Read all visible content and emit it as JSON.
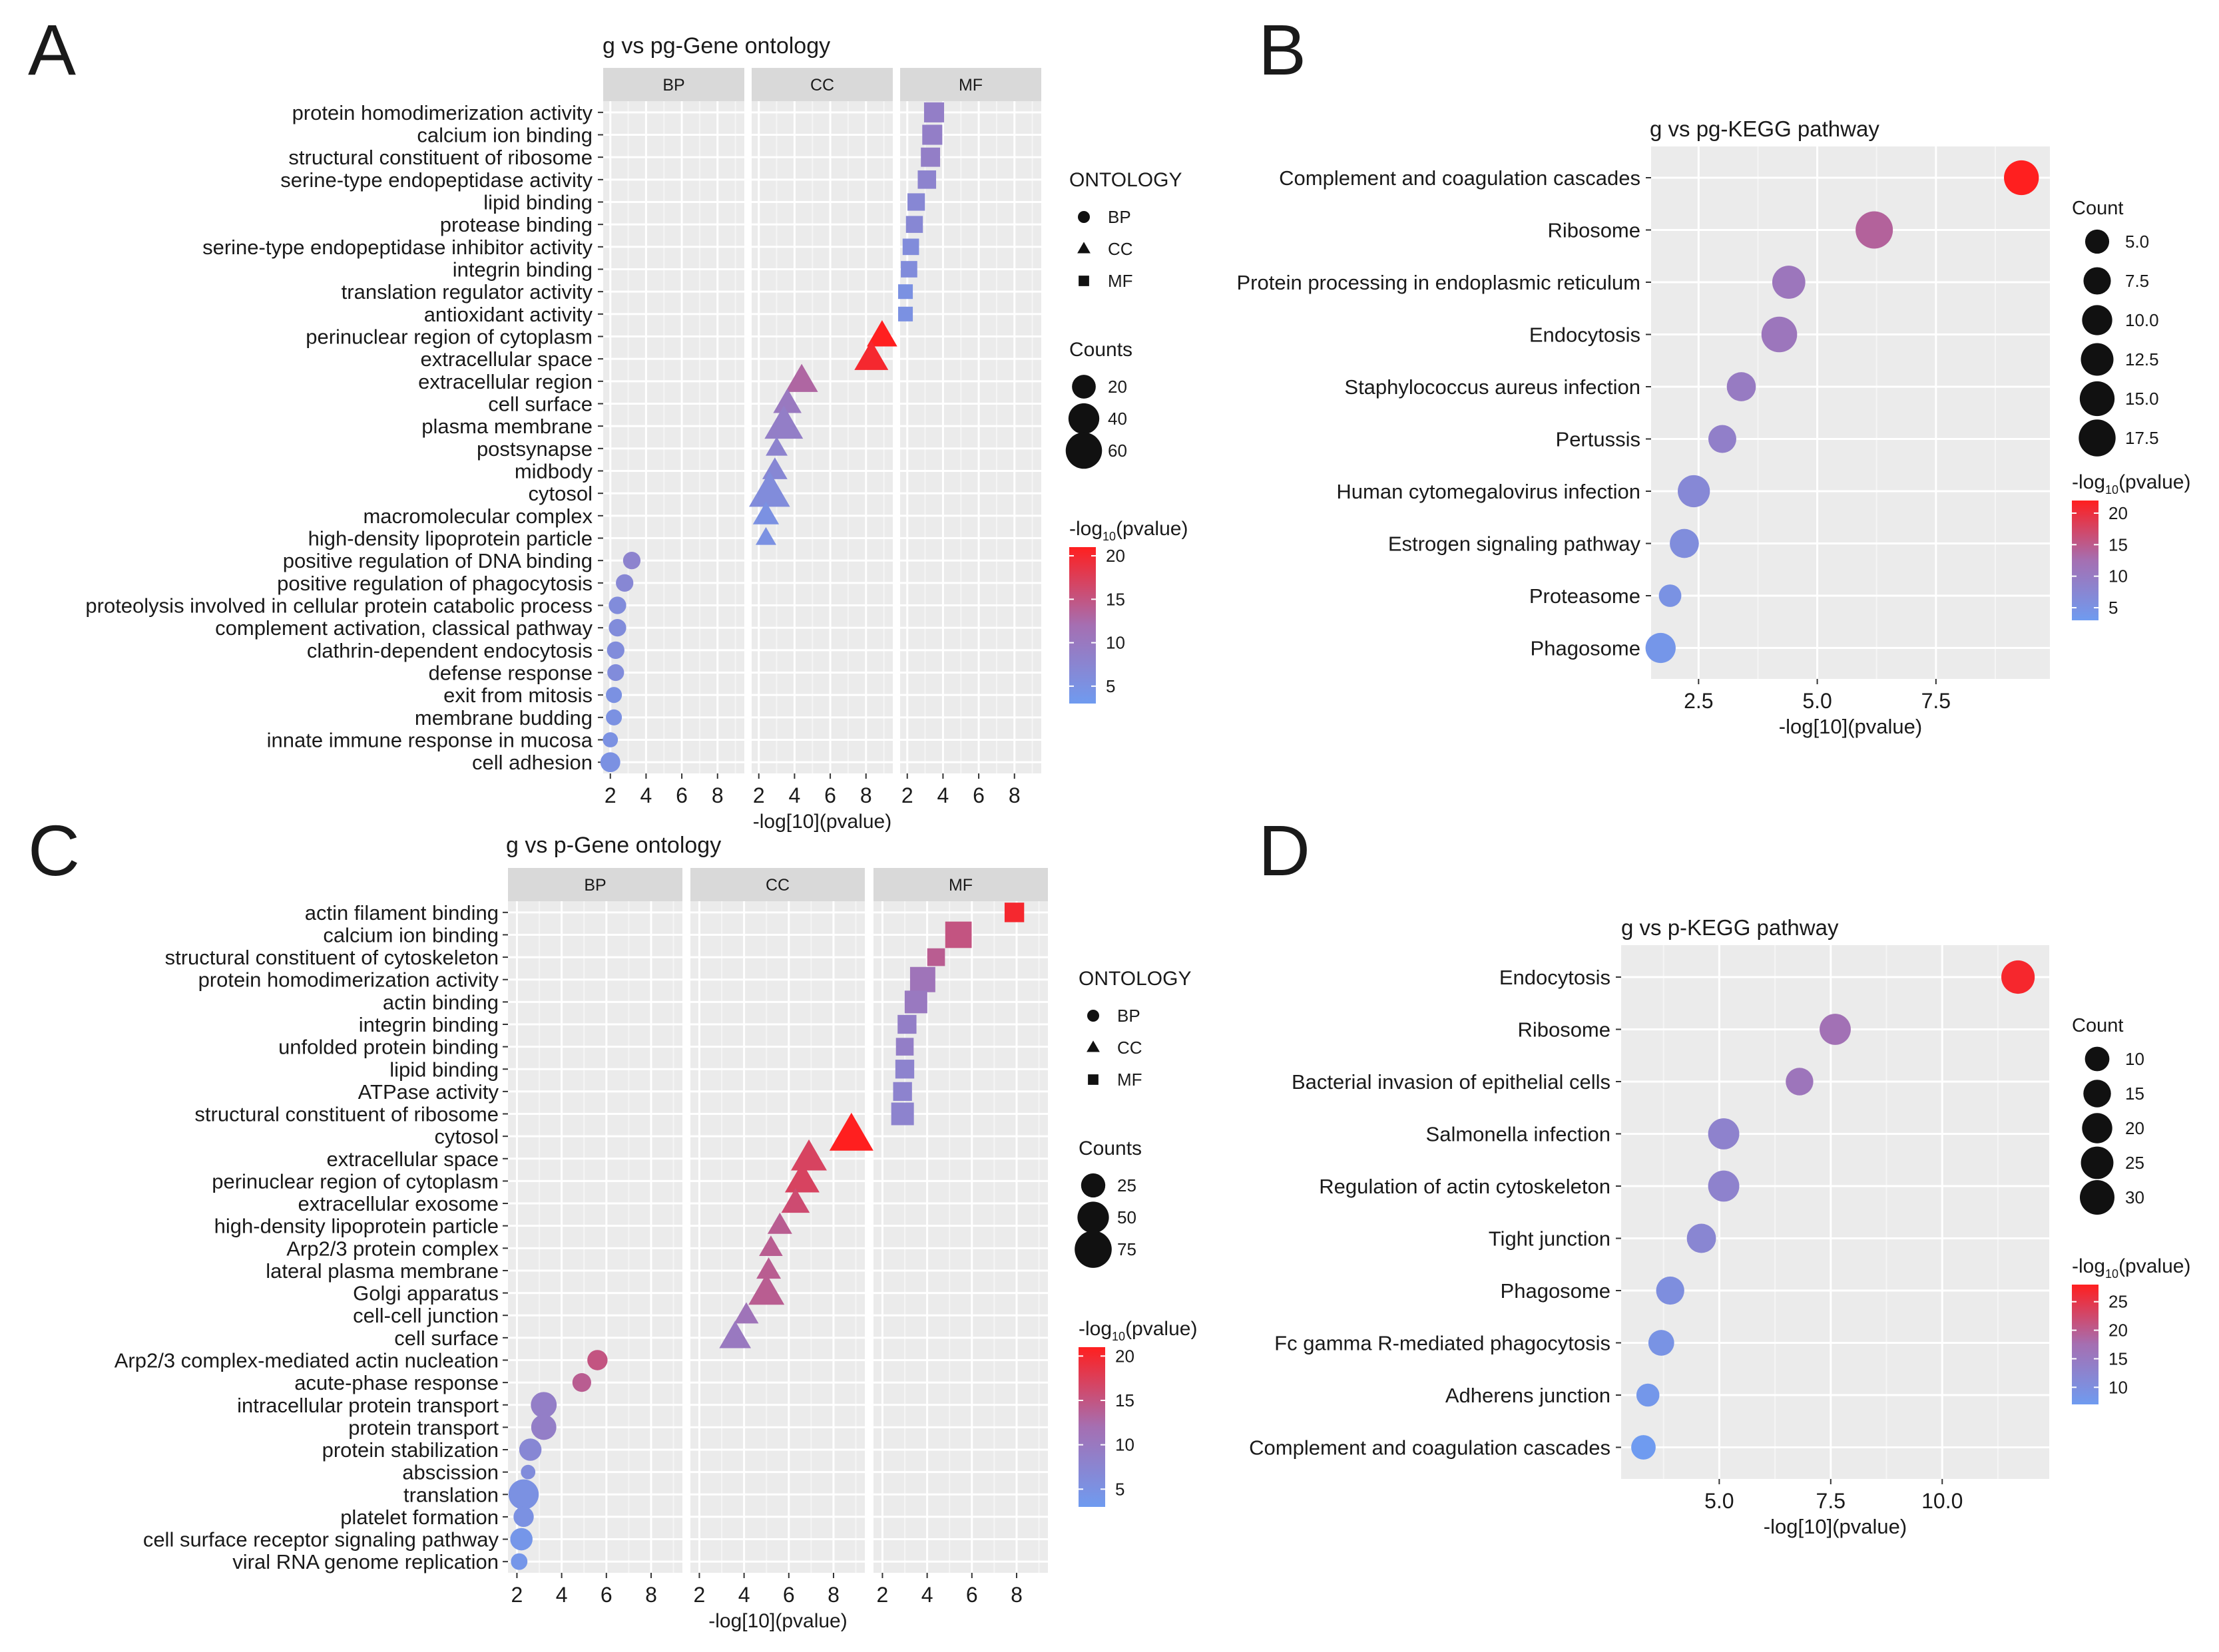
{
  "figure": {
    "panel_letters": [
      "A",
      "B",
      "C",
      "D"
    ],
    "colorbar_legend_title": "-log10(pvalue)",
    "legend_shape_labels": {
      "BP": "circle",
      "CC": "triangle",
      "MF": "square"
    }
  },
  "chart_data": [
    {
      "panel": "A",
      "type": "scatter",
      "subtype": "faceted dot plot",
      "title": "g vs pg-Gene ontology",
      "xlabel": "-log[10](pvalue)",
      "ylabel": "",
      "facets": [
        "BP",
        "CC",
        "MF"
      ],
      "xlim": [
        1.6,
        9.5
      ],
      "xticks": [
        2,
        4,
        6,
        8
      ],
      "categories": [
        "protein homodimerization activity",
        "calcium ion binding",
        "structural constituent of ribosome",
        "serine-type endopeptidase activity",
        "lipid binding",
        "protease binding",
        "serine-type endopeptidase inhibitor activity",
        "integrin binding",
        "translation regulator activity",
        "antioxidant activity",
        "perinuclear region of cytoplasm",
        "extracellular space",
        "extracellular region",
        "cell surface",
        "plasma membrane",
        "postsynapse",
        "midbody",
        "cytosol",
        "macromolecular complex",
        "high-density lipoprotein particle",
        "positive regulation of DNA binding",
        "positive regulation of phagocytosis",
        "proteolysis involved in cellular protein catabolic process",
        "complement activation, classical pathway",
        "clathrin-dependent endocytosis",
        "defense response",
        "exit from mitosis",
        "membrane budding",
        "innate immune response in mucosa",
        "cell adhesion"
      ],
      "ontology": [
        "MF",
        "MF",
        "MF",
        "MF",
        "MF",
        "MF",
        "MF",
        "MF",
        "MF",
        "MF",
        "CC",
        "CC",
        "CC",
        "CC",
        "CC",
        "CC",
        "CC",
        "CC",
        "CC",
        "CC",
        "BP",
        "BP",
        "BP",
        "BP",
        "BP",
        "BP",
        "BP",
        "BP",
        "BP",
        "BP"
      ],
      "x": [
        3.5,
        3.4,
        3.3,
        3.1,
        2.5,
        2.4,
        2.2,
        2.1,
        1.9,
        1.9,
        8.9,
        8.3,
        4.4,
        3.6,
        3.4,
        3.0,
        2.9,
        2.6,
        2.4,
        2.4,
        3.2,
        2.8,
        2.4,
        2.4,
        2.3,
        2.3,
        2.2,
        2.2,
        2.0,
        2.0
      ],
      "counts": [
        18,
        18,
        16,
        14,
        12,
        11,
        10,
        10,
        7,
        7,
        30,
        40,
        36,
        25,
        55,
        12,
        18,
        64,
        20,
        10,
        8,
        8,
        8,
        8,
        8,
        7,
        6,
        6,
        5,
        12
      ],
      "neglog10_pvalue": [
        9,
        9,
        9,
        8,
        7,
        7,
        6,
        6,
        5,
        5,
        21,
        20,
        13,
        10,
        9,
        8,
        7,
        6,
        5,
        5,
        8,
        7,
        6,
        6,
        6,
        6,
        5,
        5,
        5,
        5
      ],
      "legend": {
        "ontology_title": "ONTOLOGY",
        "ontology_items": [
          "BP",
          "CC",
          "MF"
        ],
        "size_title": "Counts",
        "size_items": [
          "20",
          "40",
          "60"
        ],
        "color_ticks": [
          "20",
          "15",
          "10",
          "5"
        ]
      }
    },
    {
      "panel": "B",
      "type": "scatter",
      "subtype": "dot plot",
      "title": "g vs pg-KEGG pathway",
      "xlabel": "-log[10](pvalue)",
      "ylabel": "",
      "xlim": [
        1.5,
        9.9
      ],
      "xticks": [
        "2.5",
        "5.0",
        "7.5"
      ],
      "categories": [
        "Complement and coagulation cascades",
        "Ribosome",
        "Protein processing in endoplasmic reticulum",
        "Endocytosis",
        "Staphylococcus aureus infection",
        "Pertussis",
        "Human cytomegalovirus infection",
        "Estrogen signaling pathway",
        "Proteasome",
        "Phagosome"
      ],
      "x": [
        9.3,
        6.2,
        4.4,
        4.2,
        3.4,
        3.0,
        2.4,
        2.2,
        1.9,
        1.7
      ],
      "counts": [
        15,
        18,
        13,
        16,
        9,
        8,
        12,
        9,
        4,
        10
      ],
      "neglog10_pvalue": [
        22,
        14,
        11,
        11,
        10,
        9,
        7,
        6,
        5,
        4
      ],
      "legend": {
        "size_title": "Count",
        "size_items": [
          "5.0",
          "7.5",
          "10.0",
          "12.5",
          "15.0",
          "17.5"
        ],
        "color_ticks": [
          "20",
          "15",
          "10",
          "5"
        ]
      }
    },
    {
      "panel": "C",
      "type": "scatter",
      "subtype": "faceted dot plot",
      "title": "g vs p-Gene ontology",
      "xlabel": "-log[10](pvalue)",
      "ylabel": "",
      "facets": [
        "BP",
        "CC",
        "MF"
      ],
      "xlim": [
        1.6,
        9.4
      ],
      "xticks": [
        2,
        4,
        6,
        8
      ],
      "categories": [
        "actin filament binding",
        "calcium ion binding",
        "structural constituent of cytoskeleton",
        "protein homodimerization activity",
        "actin binding",
        "integrin binding",
        "unfolded protein binding",
        "lipid binding",
        "ATPase activity",
        "structural constituent of ribosome",
        "cytosol",
        "extracellular space",
        "perinuclear region of cytoplasm",
        "extracellular exosome",
        "high-density lipoprotein particle",
        "Arp2/3 protein complex",
        "lateral plasma membrane",
        "Golgi apparatus",
        "cell-cell junction",
        "cell surface",
        "Arp2/3 complex-mediated actin nucleation",
        "acute-phase response",
        "intracellular protein transport",
        "protein transport",
        "protein stabilization",
        "abscission",
        "translation",
        "platelet formation",
        "cell surface receptor signaling pathway",
        "viral RNA genome replication"
      ],
      "ontology": [
        "MF",
        "MF",
        "MF",
        "MF",
        "MF",
        "MF",
        "MF",
        "MF",
        "MF",
        "MF",
        "CC",
        "CC",
        "CC",
        "CC",
        "CC",
        "CC",
        "CC",
        "CC",
        "CC",
        "CC",
        "BP",
        "BP",
        "BP",
        "BP",
        "BP",
        "BP",
        "BP",
        "BP",
        "BP",
        "BP"
      ],
      "x": [
        7.9,
        5.4,
        4.4,
        3.8,
        3.5,
        3.1,
        3.0,
        3.0,
        2.9,
        2.9,
        8.8,
        6.9,
        6.6,
        6.3,
        5.6,
        5.2,
        5.1,
        5.0,
        4.1,
        3.6,
        5.6,
        4.9,
        3.2,
        3.2,
        2.6,
        2.5,
        2.3,
        2.3,
        2.2,
        2.1
      ],
      "counts": [
        20,
        45,
        15,
        40,
        30,
        18,
        15,
        18,
        18,
        30,
        90,
        55,
        50,
        30,
        20,
        18,
        20,
        55,
        20,
        40,
        15,
        12,
        30,
        28,
        20,
        5,
        45,
        15,
        20,
        8
      ],
      "neglog10_pvalue": [
        20,
        15,
        14,
        11,
        10,
        9,
        9,
        8,
        8,
        8,
        21,
        17,
        17,
        16,
        14,
        14,
        14,
        14,
        11,
        10,
        15,
        14,
        9,
        9,
        7,
        6,
        5,
        5,
        4,
        4
      ],
      "legend": {
        "ontology_title": "ONTOLOGY",
        "ontology_items": [
          "BP",
          "CC",
          "MF"
        ],
        "size_title": "Counts",
        "size_items": [
          "25",
          "50",
          "75"
        ],
        "color_ticks": [
          "20",
          "15",
          "10",
          "5"
        ]
      }
    },
    {
      "panel": "D",
      "type": "scatter",
      "subtype": "dot plot",
      "title": "g vs p-KEGG pathway",
      "xlabel": "-log[10](pvalue)",
      "ylabel": "",
      "xlim": [
        2.8,
        12.4
      ],
      "xticks": [
        "5.0",
        "7.5",
        "10.0"
      ],
      "categories": [
        "Endocytosis",
        "Ribosome",
        "Bacterial invasion of epithelial cells",
        "Salmonella infection",
        "Regulation of actin cytoskeleton",
        "Tight junction",
        "Phagosome",
        "Fc gamma R-mediated phagocytosis",
        "Adherens junction",
        "Complement and coagulation cascades"
      ],
      "x": [
        11.7,
        7.6,
        6.8,
        5.1,
        5.1,
        4.6,
        3.9,
        3.7,
        3.4,
        3.3
      ],
      "counts": [
        27,
        22,
        15,
        22,
        22,
        18,
        16,
        12,
        8,
        10
      ],
      "neglog10_pvalue": [
        27,
        17,
        16,
        13,
        13,
        12,
        10,
        9,
        8,
        7
      ],
      "legend": {
        "size_title": "Count",
        "size_items": [
          "10",
          "15",
          "20",
          "25",
          "30"
        ],
        "color_ticks": [
          "25",
          "20",
          "15",
          "10"
        ]
      }
    }
  ]
}
